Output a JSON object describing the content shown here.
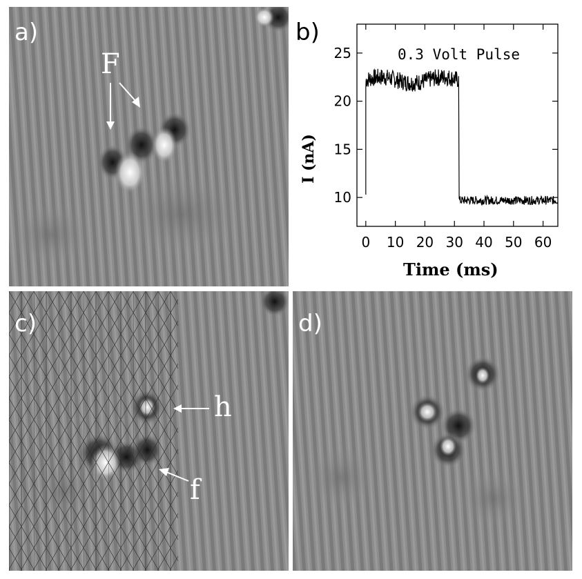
{
  "figure": {
    "panels": {
      "a": {
        "label": "a)",
        "annotation": "F"
      },
      "b": {
        "label": "b)"
      },
      "c": {
        "label": "c)",
        "annotations": [
          "h",
          "f"
        ]
      },
      "d": {
        "label": "d)"
      }
    }
  },
  "chart_data": {
    "type": "line",
    "title": "0.3  Volt  Pulse",
    "xlabel": "Time  (ms)",
    "ylabel": "I  (nA)",
    "xlim": [
      -3,
      65
    ],
    "ylim": [
      7,
      28
    ],
    "xticks": [
      0,
      10,
      20,
      30,
      40,
      50,
      60
    ],
    "yticks": [
      10,
      15,
      20,
      25
    ],
    "grid": false,
    "series": [
      {
        "values_description_free": true,
        "x": [
          0,
          0,
          0.5,
          5,
          10,
          15,
          20,
          25,
          31.5,
          31.6,
          32,
          40,
          50,
          60,
          65
        ],
        "y": [
          10.3,
          21.5,
          22.3,
          22.2,
          22.3,
          22.1,
          22.3,
          22.2,
          22.2,
          10.0,
          9.7,
          9.7,
          9.7,
          9.7,
          9.7
        ]
      }
    ],
    "noise": {
      "high_amplitude": 0.9,
      "low_amplitude": 0.45
    },
    "colors": {
      "line": "#000000",
      "axes": "#000000"
    }
  },
  "colors": {
    "stm_base": "#8c8c8c",
    "label": "#ffffff"
  }
}
